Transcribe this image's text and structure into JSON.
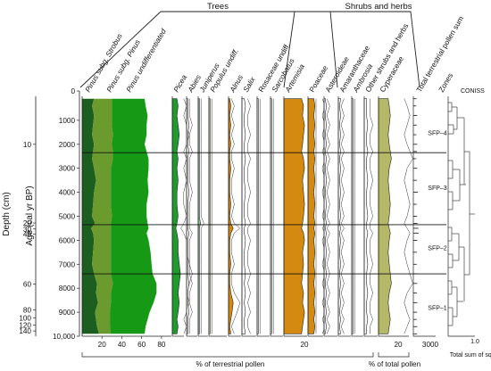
{
  "chart_data": {
    "type": "area",
    "title": "",
    "groups": [
      {
        "label": "Trees",
        "key": "trees"
      },
      {
        "label": "Shrubs and herbs",
        "key": "shrubs"
      }
    ],
    "y_axes": {
      "age": {
        "label": "Age (cal yr BP)",
        "range": [
          0,
          10000
        ],
        "ticks": [
          "0",
          "1000",
          "2000",
          "3000",
          "4000",
          "5000",
          "6000",
          "7000",
          "8000",
          "9000",
          "10,000"
        ]
      },
      "depth": {
        "label": "Depth (cm)",
        "ticks": [
          {
            "label": "10",
            "age": 2000
          },
          {
            "label": "20",
            "age": 5280
          },
          {
            "label": "30",
            "age": 5530
          },
          {
            "label": "40",
            "age": 5740
          },
          {
            "label": "60",
            "age": 7820
          },
          {
            "label": "80",
            "age": 8900
          },
          {
            "label": "100",
            "age": 9230
          },
          {
            "label": "120",
            "age": 9540
          },
          {
            "label": "140",
            "age": 9780
          }
        ]
      }
    },
    "samples_age": [
      100,
      400,
      800,
      1200,
      1600,
      2000,
      2300,
      2600,
      3000,
      3500,
      4000,
      4500,
      5000,
      5300,
      5500,
      5700,
      6000,
      6500,
      7000,
      7400,
      7800,
      8200,
      8600,
      9000,
      9300,
      9600,
      9900
    ],
    "pine_stack": {
      "series": [
        {
          "name": "Pinus subg. Strobus",
          "values": [
            12,
            10,
            12,
            11,
            10,
            12,
            11,
            10,
            12,
            14,
            12,
            11,
            10,
            13,
            9,
            11,
            12,
            11,
            10,
            12,
            15,
            14,
            16,
            13,
            14,
            15,
            17
          ]
        },
        {
          "name": "Pinus subg. Pinus",
          "values": [
            18,
            20,
            18,
            19,
            21,
            18,
            20,
            21,
            17,
            15,
            17,
            18,
            20,
            16,
            20,
            18,
            17,
            18,
            19,
            17,
            16,
            15,
            13,
            15,
            14,
            13,
            12
          ]
        },
        {
          "name": "Pinus undifferentiated",
          "values": [
            33,
            34,
            36,
            35,
            34,
            33,
            34,
            36,
            38,
            37,
            38,
            36,
            35,
            37,
            38,
            36,
            38,
            40,
            41,
            42,
            44,
            46,
            43,
            40,
            38,
            36,
            34
          ]
        }
      ],
      "xlim": [
        0,
        90
      ],
      "x_ticks": [
        "20",
        "40",
        "60",
        "80"
      ]
    },
    "taxa": [
      {
        "name": "Picea",
        "italic": true,
        "color": "#1f9a2c",
        "values": [
          4,
          5,
          4,
          5,
          6,
          5,
          4,
          5,
          4,
          5,
          4,
          4,
          5,
          4,
          3,
          4,
          5,
          5,
          6,
          7,
          6,
          5,
          6,
          5,
          4,
          5,
          4
        ]
      },
      {
        "name": "Abies",
        "italic": true,
        "color": "#ffffff",
        "values": [
          1,
          1,
          1,
          2,
          1,
          1,
          2,
          1,
          1,
          1,
          2,
          1,
          1,
          1,
          1,
          2,
          1,
          1,
          1,
          1,
          2,
          1,
          1,
          2,
          1,
          1,
          1
        ]
      },
      {
        "name": "Juniperus",
        "italic": true,
        "color": "#8fd08f",
        "values": [
          1,
          1,
          1,
          1,
          1,
          1,
          1,
          1,
          1,
          1,
          1,
          1,
          1,
          2,
          1,
          1,
          1,
          1,
          1,
          1,
          1,
          1,
          1,
          1,
          1,
          1,
          1
        ]
      },
      {
        "name": "Populus undiff.",
        "italic": true,
        "color": "#cfe8b0",
        "values": [
          1,
          1,
          1,
          1,
          1,
          1,
          1,
          1,
          1,
          1,
          1,
          1,
          1,
          1,
          1,
          1,
          1,
          1,
          1,
          1,
          1,
          1,
          1,
          1,
          1,
          1,
          1
        ]
      },
      {
        "name": "Alnus",
        "italic": true,
        "color": "#d48a10",
        "values": [
          1,
          2,
          1,
          2,
          1,
          2,
          1,
          1,
          2,
          1,
          1,
          2,
          1,
          2,
          4,
          2,
          1,
          1,
          2,
          1,
          1,
          2,
          4,
          3,
          2,
          1,
          2
        ]
      },
      {
        "name": "Salix",
        "italic": true,
        "color": "#ffffff",
        "values": [
          2,
          3,
          2,
          2,
          3,
          2,
          2,
          3,
          2,
          2,
          3,
          2,
          2,
          3,
          2,
          2,
          3,
          2,
          2,
          3,
          2,
          3,
          2,
          3,
          2,
          2,
          3
        ]
      },
      {
        "name": "Rosaceae undiff.",
        "italic": false,
        "color": "#ffffff",
        "values": [
          1,
          1,
          1,
          1,
          1,
          1,
          1,
          1,
          1,
          1,
          1,
          1,
          1,
          1,
          1,
          1,
          1,
          1,
          1,
          1,
          1,
          1,
          1,
          1,
          1,
          1,
          1
        ]
      },
      {
        "name": "Sarcobatus",
        "italic": true,
        "color": "#ffffff",
        "values": [
          1,
          1,
          1,
          1,
          1,
          1,
          1,
          1,
          1,
          1,
          1,
          1,
          1,
          1,
          1,
          1,
          1,
          1,
          1,
          1,
          1,
          1,
          1,
          1,
          1,
          1,
          1
        ]
      },
      {
        "name": "Artemisia",
        "italic": true,
        "color": "#d48a10",
        "values": [
          18,
          20,
          19,
          21,
          20,
          19,
          18,
          20,
          21,
          19,
          20,
          21,
          20,
          19,
          18,
          20,
          21,
          19,
          20,
          19,
          18,
          20,
          19,
          21,
          20,
          19,
          18
        ]
      },
      {
        "name": "Poaceae",
        "italic": false,
        "color": "#d48a10",
        "values": [
          5,
          6,
          5,
          6,
          5,
          6,
          5,
          6,
          5,
          6,
          5,
          6,
          5,
          6,
          5,
          6,
          5,
          6,
          5,
          6,
          5,
          6,
          5,
          6,
          5,
          6,
          5
        ]
      },
      {
        "name": "Asteroideae",
        "italic": false,
        "color": "#ffffff",
        "values": [
          1,
          2,
          1,
          2,
          1,
          2,
          1,
          2,
          1,
          2,
          1,
          2,
          1,
          2,
          1,
          2,
          1,
          2,
          1,
          2,
          1,
          2,
          1,
          2,
          1,
          2,
          1
        ]
      },
      {
        "name": "Amaranthaceae",
        "italic": false,
        "color": "#ffffff",
        "values": [
          2,
          1,
          2,
          1,
          2,
          1,
          2,
          1,
          2,
          1,
          2,
          1,
          2,
          1,
          2,
          1,
          2,
          1,
          2,
          1,
          2,
          1,
          2,
          1,
          2,
          1,
          2
        ]
      },
      {
        "name": "Ambrosia",
        "italic": true,
        "color": "#ffffff",
        "values": [
          1,
          1,
          1,
          1,
          1,
          1,
          1,
          1,
          1,
          1,
          1,
          1,
          1,
          1,
          1,
          1,
          1,
          1,
          1,
          1,
          1,
          1,
          1,
          1,
          1,
          1,
          1
        ]
      },
      {
        "name": "Other shrubs and herbs",
        "italic": false,
        "color": "#ffffff",
        "values": [
          2,
          2,
          2,
          3,
          2,
          2,
          3,
          2,
          2,
          3,
          2,
          2,
          3,
          2,
          2,
          3,
          2,
          2,
          3,
          2,
          2,
          3,
          2,
          2,
          3,
          2,
          2
        ]
      },
      {
        "name": "Cyperaceae",
        "italic": false,
        "color": "#b5b866",
        "values": [
          9,
          10,
          11,
          10,
          9,
          10,
          11,
          12,
          10,
          9,
          10,
          11,
          10,
          9,
          10,
          11,
          10,
          9,
          10,
          11,
          12,
          10,
          9,
          10,
          11,
          10,
          9
        ]
      }
    ],
    "axis_notes": {
      "terrestrial_tick": "20",
      "terrestrial_label": "% of terrestrial pollen",
      "total_tick": "20",
      "total_label": "% of total pollen"
    },
    "pollen_sum": {
      "name": "Total terrestrial pollen sum",
      "tick": "3000",
      "values": [
        420,
        380,
        510,
        460,
        400,
        520,
        480,
        390,
        530,
        470,
        610,
        450,
        500,
        560,
        680,
        720,
        520,
        480,
        450,
        600,
        520,
        470,
        540,
        500,
        460,
        530,
        490
      ]
    },
    "zones": {
      "label": "Zones",
      "boundaries_age": [
        2350,
        5350,
        7400
      ],
      "items": [
        {
          "name": "SFP–4",
          "age": 1500
        },
        {
          "name": "SFP–3",
          "age": 3800
        },
        {
          "name": "SFP–2",
          "age": 6300
        },
        {
          "name": "SFP–1",
          "age": 8800
        }
      ]
    },
    "coniss": {
      "label": "CONISS",
      "x_tick": "1.0",
      "xlabel": "Total sum of squares"
    }
  }
}
